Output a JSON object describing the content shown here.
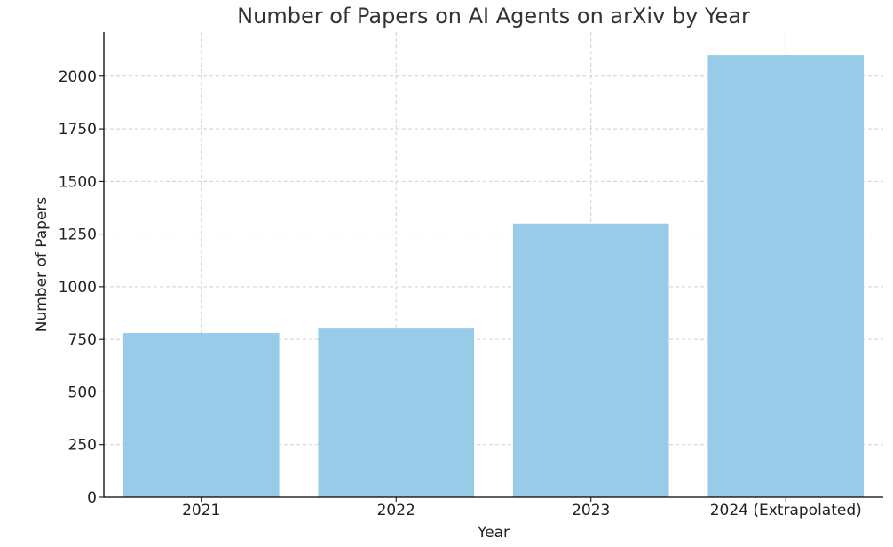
{
  "chart_data": {
    "type": "bar",
    "title": "Number of Papers on AI Agents on arXiv by Year",
    "xlabel": "Year",
    "ylabel": "Number of Papers",
    "categories": [
      "2021",
      "2022",
      "2023",
      "2024 (Extrapolated)"
    ],
    "values": [
      780,
      805,
      1300,
      2100
    ],
    "ylim": [
      0,
      2210
    ],
    "yticks": [
      0,
      250,
      500,
      750,
      1000,
      1250,
      1500,
      1750,
      2000
    ],
    "grid": true,
    "bar_color": "#97cbe7"
  }
}
